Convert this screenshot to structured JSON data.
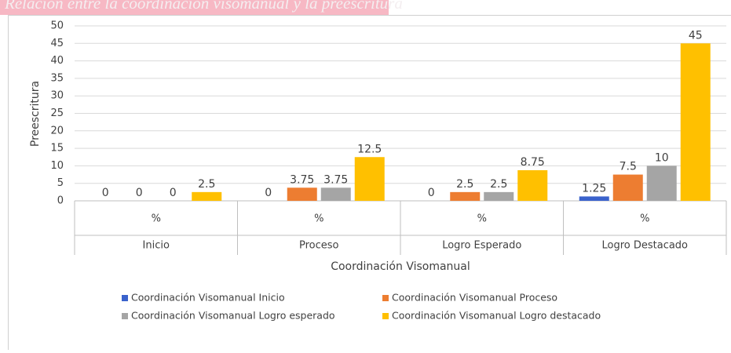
{
  "chart_data": {
    "type": "bar",
    "title": "Relación entre la coordinación visomanual y la preescritura",
    "categories": [
      "Inicio",
      "Proceso",
      "Logro Esperado",
      "Logro Destacado"
    ],
    "sublabels": [
      "%",
      "%",
      "%",
      "%"
    ],
    "series": [
      {
        "name": "Coordinación Visomanual Inicio",
        "color": "#3a62cc",
        "values": [
          0,
          0,
          0,
          1.25
        ]
      },
      {
        "name": "Coordinación Visomanual Proceso",
        "color": "#ed7d31",
        "values": [
          0,
          3.75,
          2.5,
          7.5
        ]
      },
      {
        "name": "Coordinación Visomanual Logro esperado",
        "color": "#a5a5a5",
        "values": [
          0,
          3.75,
          2.5,
          10
        ]
      },
      {
        "name": "Coordinación Visomanual Logro destacado",
        "color": "#ffc000",
        "values": [
          2.5,
          12.5,
          8.75,
          45
        ]
      }
    ],
    "ylabel": "Preescritura",
    "xlabel": "Coordinación Visomanual",
    "ylim": [
      0,
      50
    ],
    "yticks": [
      0,
      5,
      10,
      15,
      20,
      25,
      30,
      35,
      40,
      45,
      50
    ],
    "grid": true,
    "legend": "bottom"
  }
}
